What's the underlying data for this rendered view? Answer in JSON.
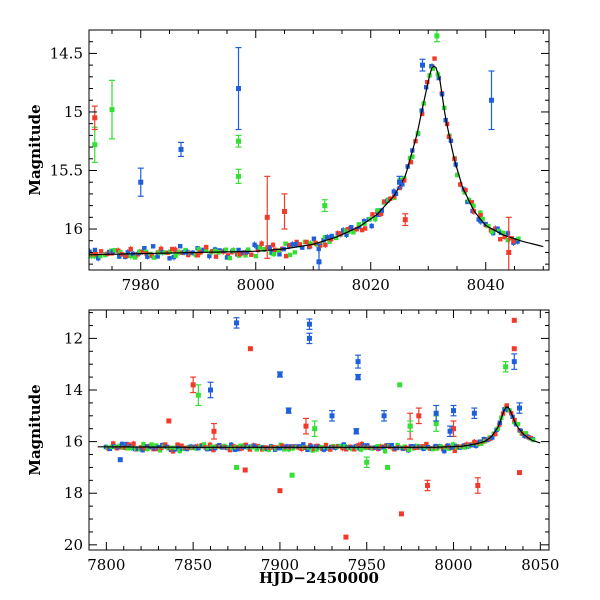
{
  "figure": {
    "xlabel_shared": "HJD−2450000",
    "ylabel_shared": "Magnitude",
    "colors": {
      "blue": "#1f5fdc",
      "green": "#33e033",
      "red": "#f23a2a",
      "model": "#000000"
    }
  },
  "chart_data": [
    {
      "panel": "top",
      "type": "scatter",
      "xlabel": "",
      "ylabel": "Magnitude",
      "xlim": [
        7971,
        8051
      ],
      "ylim": [
        16.35,
        14.3
      ],
      "y_inverted": true,
      "xticks": [
        7980,
        8000,
        8020,
        8040
      ],
      "yticks": [
        14.5,
        15,
        15.5,
        16
      ],
      "yticklabels": [
        "14.5",
        "15",
        "15.5",
        "16"
      ],
      "model": {
        "type": "line",
        "x": [
          7971,
          7980,
          7990,
          8000,
          8005,
          8010,
          8014,
          8018,
          8021,
          8024,
          8026,
          8028,
          8029.5,
          8030.5,
          8031.2,
          8032,
          8033,
          8034.5,
          8036,
          8038,
          8040,
          8043,
          8046,
          8050
        ],
        "y": [
          16.22,
          16.21,
          16.2,
          16.19,
          16.17,
          16.13,
          16.07,
          15.98,
          15.88,
          15.72,
          15.55,
          15.2,
          14.85,
          14.63,
          14.6,
          14.72,
          15.05,
          15.4,
          15.65,
          15.85,
          15.97,
          16.05,
          16.1,
          16.15
        ]
      },
      "outliers": [
        {
          "series": "green",
          "x": 7975,
          "y": 14.98,
          "err": 0.25
        },
        {
          "series": "green",
          "x": 7972,
          "y": 15.28,
          "err": 0.15
        },
        {
          "series": "red",
          "x": 7972,
          "y": 15.05,
          "err": 0.1
        },
        {
          "series": "blue",
          "x": 7980,
          "y": 15.6,
          "err": 0.12
        },
        {
          "series": "blue",
          "x": 7987,
          "y": 15.32,
          "err": 0.06
        },
        {
          "series": "blue",
          "x": 7997,
          "y": 14.8,
          "err": 0.35
        },
        {
          "series": "green",
          "x": 7997,
          "y": 15.25,
          "err": 0.05
        },
        {
          "series": "green",
          "x": 7997,
          "y": 15.55,
          "err": 0.06
        },
        {
          "series": "red",
          "x": 8002,
          "y": 15.9,
          "err": 0.35
        },
        {
          "series": "red",
          "x": 8005,
          "y": 15.85,
          "err": 0.15
        },
        {
          "series": "blue",
          "x": 8041,
          "y": 14.9,
          "err": 0.25
        },
        {
          "series": "green",
          "x": 8031.5,
          "y": 14.35,
          "err": 0.05
        },
        {
          "series": "blue",
          "x": 8029,
          "y": 14.6,
          "err": 0.05
        },
        {
          "series": "blue",
          "x": 8011,
          "y": 16.28,
          "err": 0.15
        },
        {
          "series": "blue",
          "x": 8025,
          "y": 15.6,
          "err": 0.05
        },
        {
          "series": "red",
          "x": 8044,
          "y": 16.2,
          "err": 0.3
        },
        {
          "series": "green",
          "x": 8012,
          "y": 15.8,
          "err": 0.05
        },
        {
          "series": "red",
          "x": 8026,
          "y": 15.92,
          "err": 0.05
        }
      ]
    },
    {
      "panel": "bottom",
      "type": "scatter",
      "xlabel": "HJD−2450000",
      "ylabel": "Magnitude",
      "xlim": [
        7790,
        8055
      ],
      "ylim": [
        20.2,
        10.9
      ],
      "y_inverted": true,
      "xticks": [
        7800,
        7850,
        7900,
        7950,
        8000,
        8050
      ],
      "yticks": [
        12,
        14,
        16,
        18,
        20
      ],
      "yticklabels": [
        "12",
        "14",
        "16",
        "18",
        "20"
      ],
      "model": {
        "type": "line",
        "x": [
          7795,
          7850,
          7900,
          7950,
          7990,
          8005,
          8012,
          8018,
          8022,
          8026,
          8029,
          8031,
          8033,
          8036,
          8040,
          8045,
          8050
        ],
        "y": [
          16.2,
          16.22,
          16.22,
          16.22,
          16.22,
          16.18,
          16.1,
          16.0,
          15.8,
          15.4,
          14.8,
          14.6,
          14.85,
          15.35,
          15.7,
          15.95,
          16.05
        ]
      },
      "outliers": [
        {
          "series": "blue",
          "x": 7875,
          "y": 11.4,
          "err": 0.2
        },
        {
          "series": "blue",
          "x": 7917,
          "y": 11.45,
          "err": 0.2
        },
        {
          "series": "blue",
          "x": 7917,
          "y": 12.0,
          "err": 0.2
        },
        {
          "series": "red",
          "x": 7883,
          "y": 12.4,
          "err": 0
        },
        {
          "series": "red",
          "x": 8035,
          "y": 11.3,
          "err": 0
        },
        {
          "series": "red",
          "x": 8035,
          "y": 12.4,
          "err": 0
        },
        {
          "series": "blue",
          "x": 8035,
          "y": 12.9,
          "err": 0.3
        },
        {
          "series": "blue",
          "x": 7945,
          "y": 12.9,
          "err": 0.25
        },
        {
          "series": "green",
          "x": 8030,
          "y": 13.1,
          "err": 0.2
        },
        {
          "series": "blue",
          "x": 7900,
          "y": 13.4,
          "err": 0.1
        },
        {
          "series": "blue",
          "x": 7945,
          "y": 13.5,
          "err": 0.1
        },
        {
          "series": "red",
          "x": 7850,
          "y": 13.8,
          "err": 0.3
        },
        {
          "series": "blue",
          "x": 7860,
          "y": 14.0,
          "err": 0.3
        },
        {
          "series": "green",
          "x": 7853,
          "y": 14.2,
          "err": 0.4
        },
        {
          "series": "green",
          "x": 7969,
          "y": 13.8,
          "err": 0
        },
        {
          "series": "red",
          "x": 7975,
          "y": 15.4,
          "err": 0.5
        },
        {
          "series": "blue",
          "x": 8038,
          "y": 14.7,
          "err": 0.2
        },
        {
          "series": "red",
          "x": 7836,
          "y": 15.2,
          "err": 0
        },
        {
          "series": "red",
          "x": 7900,
          "y": 17.9,
          "err": 0
        },
        {
          "series": "red",
          "x": 7970,
          "y": 18.8,
          "err": 0
        },
        {
          "series": "red",
          "x": 7938,
          "y": 19.7,
          "err": 0
        },
        {
          "series": "red",
          "x": 7985,
          "y": 17.7,
          "err": 0.2
        },
        {
          "series": "red",
          "x": 8014,
          "y": 17.7,
          "err": 0.3
        },
        {
          "series": "red",
          "x": 8038,
          "y": 17.2,
          "err": 0
        },
        {
          "series": "green",
          "x": 7907,
          "y": 17.3,
          "err": 0
        },
        {
          "series": "green",
          "x": 7950,
          "y": 16.8,
          "err": 0.2
        },
        {
          "series": "blue",
          "x": 7960,
          "y": 15.0,
          "err": 0.2
        },
        {
          "series": "green",
          "x": 7990,
          "y": 15.3,
          "err": 0.3
        },
        {
          "series": "blue",
          "x": 7990,
          "y": 14.9,
          "err": 0.3
        },
        {
          "series": "red",
          "x": 7980,
          "y": 15.0,
          "err": 0.3
        },
        {
          "series": "blue",
          "x": 8000,
          "y": 14.8,
          "err": 0.2
        },
        {
          "series": "red",
          "x": 8000,
          "y": 15.5,
          "err": 0.3
        },
        {
          "series": "blue",
          "x": 7998,
          "y": 15.6,
          "err": 0.2
        },
        {
          "series": "blue",
          "x": 8012,
          "y": 14.9,
          "err": 0.2
        },
        {
          "series": "red",
          "x": 7915,
          "y": 15.4,
          "err": 0.3
        },
        {
          "series": "blue",
          "x": 7930,
          "y": 15.0,
          "err": 0.2
        },
        {
          "series": "green",
          "x": 7920,
          "y": 15.5,
          "err": 0.3
        },
        {
          "series": "blue",
          "x": 7905,
          "y": 14.8,
          "err": 0.1
        },
        {
          "series": "red",
          "x": 7862,
          "y": 15.6,
          "err": 0.3
        },
        {
          "series": "green",
          "x": 7962,
          "y": 17.0,
          "err": 0
        },
        {
          "series": "blue",
          "x": 7808,
          "y": 16.7,
          "err": 0
        },
        {
          "series": "green",
          "x": 7875,
          "y": 17.0,
          "err": 0
        },
        {
          "series": "red",
          "x": 7880,
          "y": 17.1,
          "err": 0
        },
        {
          "series": "blue",
          "x": 7944,
          "y": 15.6,
          "err": 0.1
        },
        {
          "series": "green",
          "x": 7975,
          "y": 15.4,
          "err": 0.2
        }
      ]
    }
  ]
}
